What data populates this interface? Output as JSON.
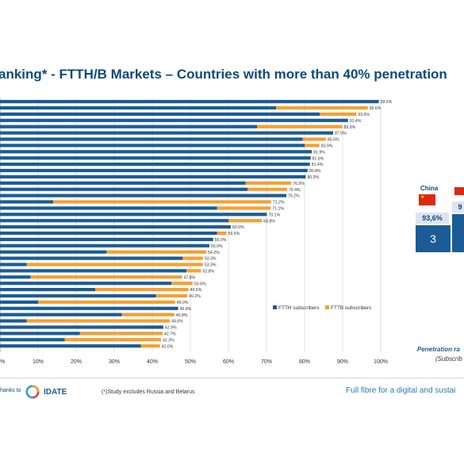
{
  "title": "anking* - FTTH/B Markets – Countries with more than 40% penetration",
  "chart_data": {
    "type": "bar",
    "orientation": "horizontal",
    "stacked": true,
    "series": [
      {
        "name": "FTTH subscribers",
        "color": "#1b5c97",
        "values": [
          99.5,
          72.5,
          84.0,
          91.4,
          67.5,
          87.5,
          79.5,
          80.0,
          81.9,
          81.6,
          81.4,
          80.8,
          80.3,
          64.5,
          65.0,
          75.2,
          14.0,
          57.0,
          70.1,
          60.0,
          60.6,
          57.0,
          56.0,
          55.0,
          28.0,
          48.0,
          7.0,
          49.0,
          8.0,
          45.0,
          25.0,
          41.0,
          10.0,
          46.8,
          32.0,
          7.0,
          42.9,
          21.0,
          17.0,
          37.0
        ]
      },
      {
        "name": "FTTB subscribers",
        "color": "#f5a030",
        "values": [
          0.0,
          24.1,
          9.6,
          0.0,
          22.4,
          0.0,
          6.1,
          3.9,
          0.0,
          0.0,
          0.0,
          0.0,
          0.0,
          12.0,
          10.4,
          0.0,
          57.2,
          14.1,
          0.0,
          8.8,
          0.0,
          2.5,
          0.0,
          0.0,
          26.2,
          5.3,
          46.3,
          3.8,
          39.8,
          5.6,
          24.5,
          8.2,
          36.0,
          0.0,
          13.8,
          37.6,
          0.0,
          21.7,
          25.3,
          5.0
        ]
      }
    ],
    "totals": [
      "99.5%",
      "96.6%",
      "93.6%",
      "91.4%",
      "89.9%",
      "87.5%",
      "85.6%",
      "83.9%",
      "81.9%",
      "81.6%",
      "81.4%",
      "80.8%",
      "80.3%",
      "76.5%",
      "75.4%",
      "75.2%",
      "71.2%",
      "71.1%",
      "70.1%",
      "68.8%",
      "60.6%",
      "59.5%",
      "56.0%",
      "55.0%",
      "54.2%",
      "53.3%",
      "53.3%",
      "52.8%",
      "47.8%",
      "50.6%",
      "49.5%",
      "49.2%",
      "46.0%",
      "46.8%",
      "45.8%",
      "44.6%",
      "42.9%",
      "42.7%",
      "42.3%",
      "42.0%"
    ],
    "xlim": [
      0,
      100
    ],
    "xticks": [
      "%",
      "10%",
      "20%",
      "30%",
      "40%",
      "50%",
      "60%",
      "70%",
      "80%",
      "90%",
      "100%"
    ],
    "grid": true,
    "legend": "bottom-right"
  },
  "side": {
    "country": "China",
    "pct": "93,6%",
    "pct2": "9",
    "rank": "3"
  },
  "pen_note": "Penetration ra",
  "pen_note2": "(Subscrib",
  "footer": {
    "thanks": "hanks to",
    "brand": "IDATE",
    "footnote": "(*)Study excludes Russia and Belarus",
    "tagline": "Full fibre for a digital and sustai"
  }
}
